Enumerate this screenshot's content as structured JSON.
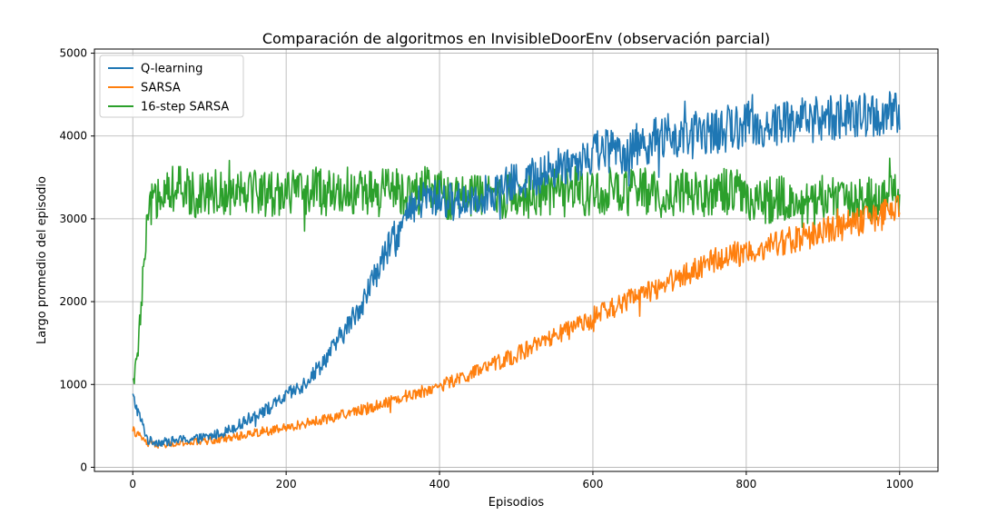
{
  "chart_data": {
    "type": "line",
    "title": "Comparación de algoritmos en InvisibleDoorEnv (observación parcial)",
    "xlabel": "Episodios",
    "ylabel": "Largo promedio del episodio",
    "xlim": [
      -50,
      1050
    ],
    "ylim": [
      -50,
      5050
    ],
    "xticks": [
      0,
      200,
      400,
      600,
      800,
      1000
    ],
    "yticks": [
      0,
      1000,
      2000,
      3000,
      4000,
      5000
    ],
    "grid": true,
    "legend_position": "top-left",
    "series": [
      {
        "name": "Q-learning",
        "color": "#1f77b4",
        "x": [
          0,
          20,
          40,
          60,
          80,
          100,
          120,
          140,
          160,
          180,
          200,
          220,
          240,
          260,
          280,
          300,
          320,
          340,
          360,
          380,
          400,
          420,
          440,
          460,
          480,
          500,
          520,
          540,
          560,
          580,
          600,
          620,
          640,
          660,
          680,
          700,
          720,
          740,
          760,
          780,
          800,
          820,
          840,
          860,
          880,
          900,
          920,
          940,
          960,
          980,
          1000
        ],
        "y": [
          850,
          320,
          300,
          330,
          340,
          370,
          430,
          520,
          640,
          720,
          860,
          980,
          1180,
          1420,
          1700,
          2000,
          2400,
          2750,
          3050,
          3250,
          3250,
          3200,
          3250,
          3300,
          3350,
          3450,
          3500,
          3550,
          3650,
          3700,
          3800,
          3850,
          3800,
          3900,
          3950,
          4000,
          3950,
          4050,
          4050,
          4100,
          4150,
          4100,
          4150,
          4200,
          4200,
          4200,
          4250,
          4200,
          4250,
          4250,
          4250
        ]
      },
      {
        "name": "SARSA",
        "color": "#ff7f0e",
        "x": [
          0,
          20,
          40,
          60,
          80,
          100,
          120,
          140,
          160,
          180,
          200,
          220,
          240,
          260,
          280,
          300,
          320,
          340,
          360,
          380,
          400,
          420,
          440,
          460,
          480,
          500,
          520,
          540,
          560,
          580,
          600,
          620,
          640,
          660,
          680,
          700,
          720,
          740,
          760,
          780,
          800,
          820,
          840,
          860,
          880,
          900,
          920,
          940,
          960,
          980,
          1000
        ],
        "y": [
          450,
          280,
          270,
          280,
          300,
          320,
          350,
          380,
          420,
          440,
          470,
          520,
          560,
          600,
          650,
          700,
          750,
          820,
          870,
          920,
          980,
          1050,
          1120,
          1200,
          1280,
          1360,
          1450,
          1530,
          1620,
          1700,
          1800,
          1900,
          1980,
          2080,
          2150,
          2250,
          2330,
          2420,
          2500,
          2560,
          2600,
          2650,
          2700,
          2750,
          2800,
          2850,
          2900,
          2950,
          3000,
          3050,
          3100
        ]
      },
      {
        "name": "16-step SARSA",
        "color": "#2ca02c",
        "x": [
          0,
          5,
          10,
          15,
          20,
          25,
          30,
          40,
          60,
          80,
          100,
          120,
          140,
          160,
          180,
          200,
          220,
          240,
          260,
          280,
          300,
          320,
          340,
          360,
          380,
          400,
          420,
          440,
          460,
          480,
          500,
          520,
          540,
          560,
          580,
          600,
          620,
          640,
          660,
          680,
          700,
          720,
          740,
          760,
          780,
          800,
          820,
          840,
          860,
          880,
          900,
          920,
          940,
          960,
          980,
          1000
        ],
        "y": [
          1000,
          1250,
          1800,
          2500,
          3000,
          3150,
          3300,
          3400,
          3350,
          3300,
          3350,
          3300,
          3400,
          3350,
          3300,
          3350,
          3300,
          3350,
          3300,
          3350,
          3300,
          3300,
          3350,
          3300,
          3350,
          3300,
          3250,
          3300,
          3250,
          3300,
          3250,
          3300,
          3350,
          3300,
          3350,
          3300,
          3350,
          3300,
          3350,
          3300,
          3300,
          3350,
          3300,
          3350,
          3300,
          3250,
          3200,
          3250,
          3200,
          3150,
          3200,
          3250,
          3200,
          3250,
          3300,
          3350
        ]
      }
    ]
  }
}
